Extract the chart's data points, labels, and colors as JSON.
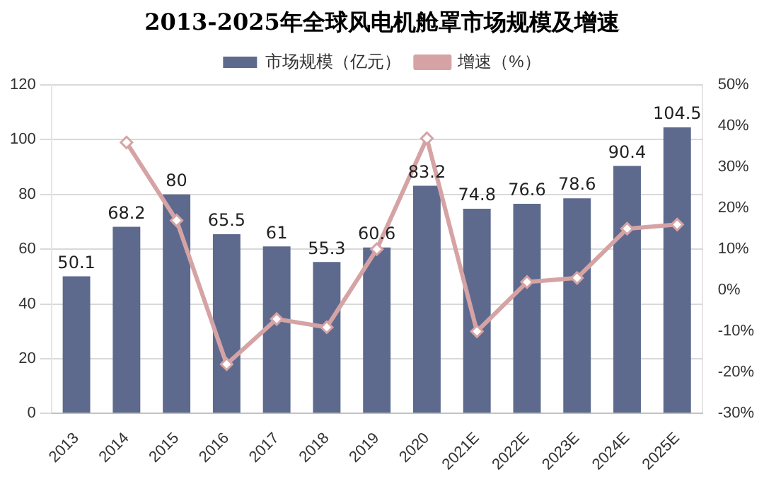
{
  "chart_data": {
    "type": "bar",
    "title": "2013-2025年全球风电机舱罩市场规模及增速",
    "categories": [
      "2013",
      "2014",
      "2015",
      "2016",
      "2017",
      "2018",
      "2019",
      "2020",
      "2021E",
      "2022E",
      "2023E",
      "2024E",
      "2025E"
    ],
    "series": [
      {
        "name": "市场规模（亿元）",
        "color": "#5d6a8e",
        "values": [
          50.1,
          68.2,
          80,
          65.5,
          61,
          55.3,
          60.6,
          83.2,
          74.8,
          76.6,
          78.6,
          90.4,
          104.5
        ],
        "value_labels": [
          "50.1",
          "68.2",
          "80",
          "65.5",
          "61",
          "55.3",
          "60.6",
          "83.2",
          "74.8",
          "76.6",
          "78.6",
          "90.4",
          "104.5"
        ]
      },
      {
        "name": "增速（%）",
        "type": "line",
        "axis": "y2",
        "color": "#d6a3a5",
        "values": [
          null,
          36,
          17,
          -18,
          -7,
          -9,
          10,
          37,
          -10,
          2,
          3,
          15,
          16
        ]
      }
    ],
    "ylim": [
      0,
      120
    ],
    "yticks": [
      0,
      20,
      40,
      60,
      80,
      100,
      120
    ],
    "y2lim": [
      -30,
      50
    ],
    "y2ticks": [
      {
        "value": -30,
        "label": "-30%"
      },
      {
        "value": -20,
        "label": "-20%"
      },
      {
        "value": -10,
        "label": "-10%"
      },
      {
        "value": 0,
        "label": "0%"
      },
      {
        "value": 10,
        "label": "10%"
      },
      {
        "value": 20,
        "label": "20%"
      },
      {
        "value": 30,
        "label": "30%"
      },
      {
        "value": 40,
        "label": "40%"
      },
      {
        "value": 50,
        "label": "50%"
      }
    ],
    "grid": "y",
    "legend": "top",
    "marker": "diamond"
  }
}
